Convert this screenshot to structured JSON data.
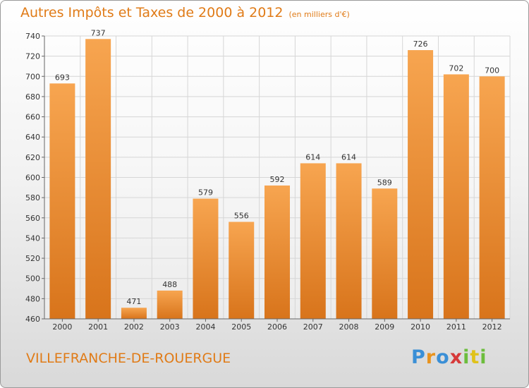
{
  "title": "Autres Impôts et Taxes de 2000 à 2012",
  "title_unit": "(en milliers d'€)",
  "commune": "VILLEFRANCHE-DE-ROUERGUE",
  "logo": {
    "text": "Proxiti"
  },
  "colors": {
    "bar_light": "#f7a550",
    "bar_dark": "#d8741b",
    "accent": "#e07b17",
    "grid": "#d6d6d6"
  },
  "chart_data": {
    "type": "bar",
    "title": "Autres Impôts et Taxes de 2000 à 2012",
    "categories": [
      "2000",
      "2001",
      "2002",
      "2003",
      "2004",
      "2005",
      "2006",
      "2007",
      "2008",
      "2009",
      "2010",
      "2011",
      "2012"
    ],
    "values": [
      693,
      737,
      471,
      488,
      579,
      556,
      592,
      614,
      614,
      589,
      726,
      702,
      700
    ],
    "ylim": [
      460,
      740
    ],
    "yticks": [
      460,
      480,
      500,
      520,
      540,
      560,
      580,
      600,
      620,
      640,
      660,
      680,
      700,
      720,
      740
    ],
    "grid": true,
    "xlabel": "",
    "ylabel": ""
  }
}
